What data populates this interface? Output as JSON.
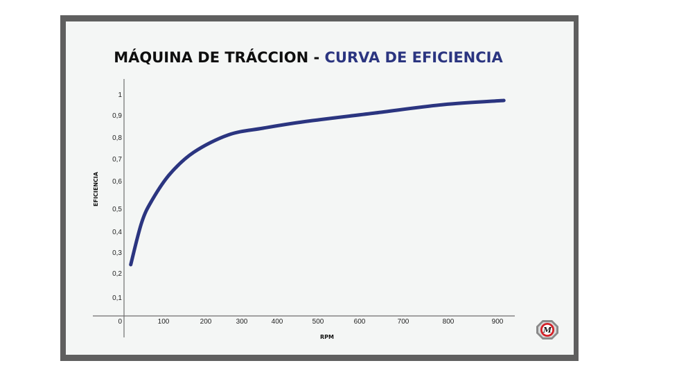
{
  "title": {
    "main": "MÁQUINA DE TRÁCCION",
    "separator": " - ",
    "accent": "CURVA DE EFICIENCIA",
    "accent_color": "#2b3580"
  },
  "logo": {
    "icon": "m-badge-logo-icon",
    "letter": "M",
    "color": "#d32027"
  },
  "chart_data": {
    "type": "line",
    "title": "MÁQUINA DE TRÁCCION - CURVA DE EFICIENCIA",
    "xlabel": "RPM",
    "ylabel": "EFICIENCIA",
    "x_ticks": [
      "0",
      "100",
      "200",
      "300",
      "400",
      "500",
      "600",
      "700",
      "800",
      "900"
    ],
    "y_ticks": [
      "0",
      "0,1",
      "0,2",
      "0,3",
      "0,4",
      "0,5",
      "0,6",
      "0,7",
      "0,8",
      "0,9",
      "1"
    ],
    "xlim": [
      0,
      920
    ],
    "ylim": [
      0,
      1
    ],
    "grid": false,
    "legend": null,
    "series": [
      {
        "name": "Eficiencia",
        "color": "#2b3580",
        "x": [
          17,
          45,
          72,
          115,
          172,
          263,
          360,
          469,
          636,
          789,
          913
        ],
        "y": [
          0.25,
          0.45,
          0.54,
          0.64,
          0.74,
          0.82,
          0.85,
          0.88,
          0.92,
          0.96,
          0.98
        ]
      }
    ]
  }
}
